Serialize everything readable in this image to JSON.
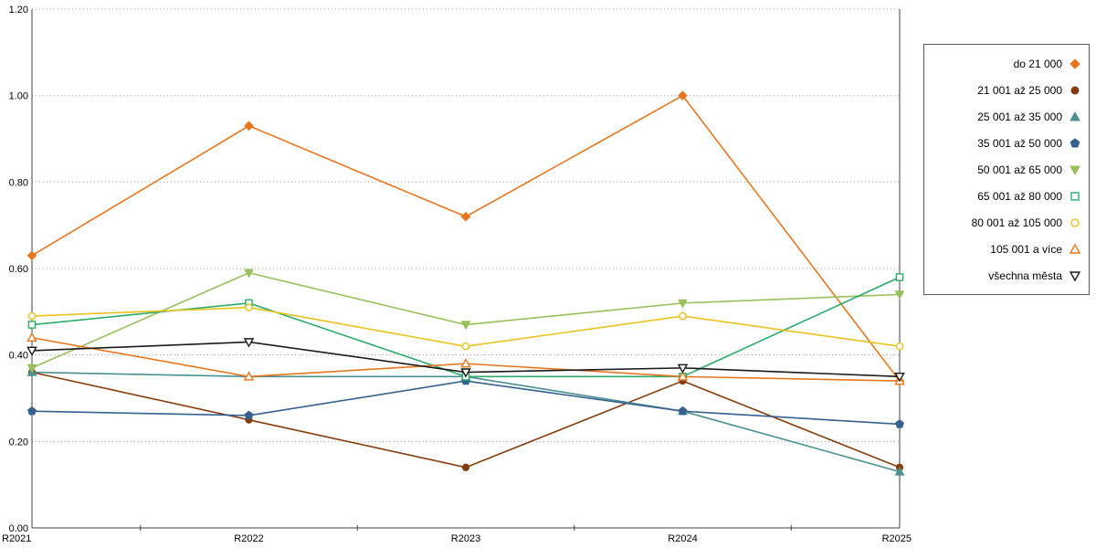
{
  "chart_data": {
    "type": "line",
    "title": "",
    "xlabel": "",
    "ylabel": "",
    "categories": [
      "R2021",
      "R2022",
      "R2023",
      "R2024",
      "R2025"
    ],
    "ylim": [
      0,
      1.2
    ],
    "ytick_step": 0.2,
    "ytick_labels": [
      "0.00",
      "0.20",
      "0.40",
      "0.60",
      "0.80",
      "1.00",
      "1.20"
    ],
    "grid": "horizontal-dotted",
    "legend_position": "right",
    "series": [
      {
        "name": "do 21 000",
        "color": "#e8761d",
        "marker": "diamond",
        "fill": "solid",
        "values": [
          0.63,
          0.93,
          0.72,
          1.0,
          0.34
        ]
      },
      {
        "name": "21 001 až 25 000",
        "color": "#843c0c",
        "marker": "circle",
        "fill": "solid",
        "values": [
          0.36,
          0.25,
          0.14,
          0.34,
          0.14
        ]
      },
      {
        "name": "25 001 až 35 000",
        "color": "#4a9090",
        "marker": "triangle-up",
        "fill": "solid",
        "values": [
          0.36,
          0.35,
          0.35,
          0.27,
          0.13
        ]
      },
      {
        "name": "35 001 až 50 000",
        "color": "#35618f",
        "marker": "pentagon",
        "fill": "solid",
        "values": [
          0.27,
          0.26,
          0.34,
          0.27,
          0.24
        ]
      },
      {
        "name": "50 001 až 65 000",
        "color": "#97c05c",
        "marker": "triangle-down",
        "fill": "solid",
        "values": [
          0.37,
          0.59,
          0.47,
          0.52,
          0.54
        ]
      },
      {
        "name": "65 001 až 80 000",
        "color": "#2cab6b",
        "marker": "square",
        "fill": "open",
        "values": [
          0.47,
          0.52,
          0.35,
          0.35,
          0.58
        ]
      },
      {
        "name": "80 001 až 105 000",
        "color": "#eac21c",
        "marker": "circle",
        "fill": "open",
        "values": [
          0.49,
          0.51,
          0.42,
          0.49,
          0.42
        ]
      },
      {
        "name": "105 001 a více",
        "color": "#e8761d",
        "marker": "triangle-up",
        "fill": "open",
        "values": [
          0.44,
          0.35,
          0.38,
          0.35,
          0.34
        ]
      },
      {
        "name": "všechna města",
        "color": "#1a1a1a",
        "marker": "triangle-down",
        "fill": "open",
        "values": [
          0.41,
          0.43,
          0.36,
          0.37,
          0.35
        ]
      }
    ]
  }
}
